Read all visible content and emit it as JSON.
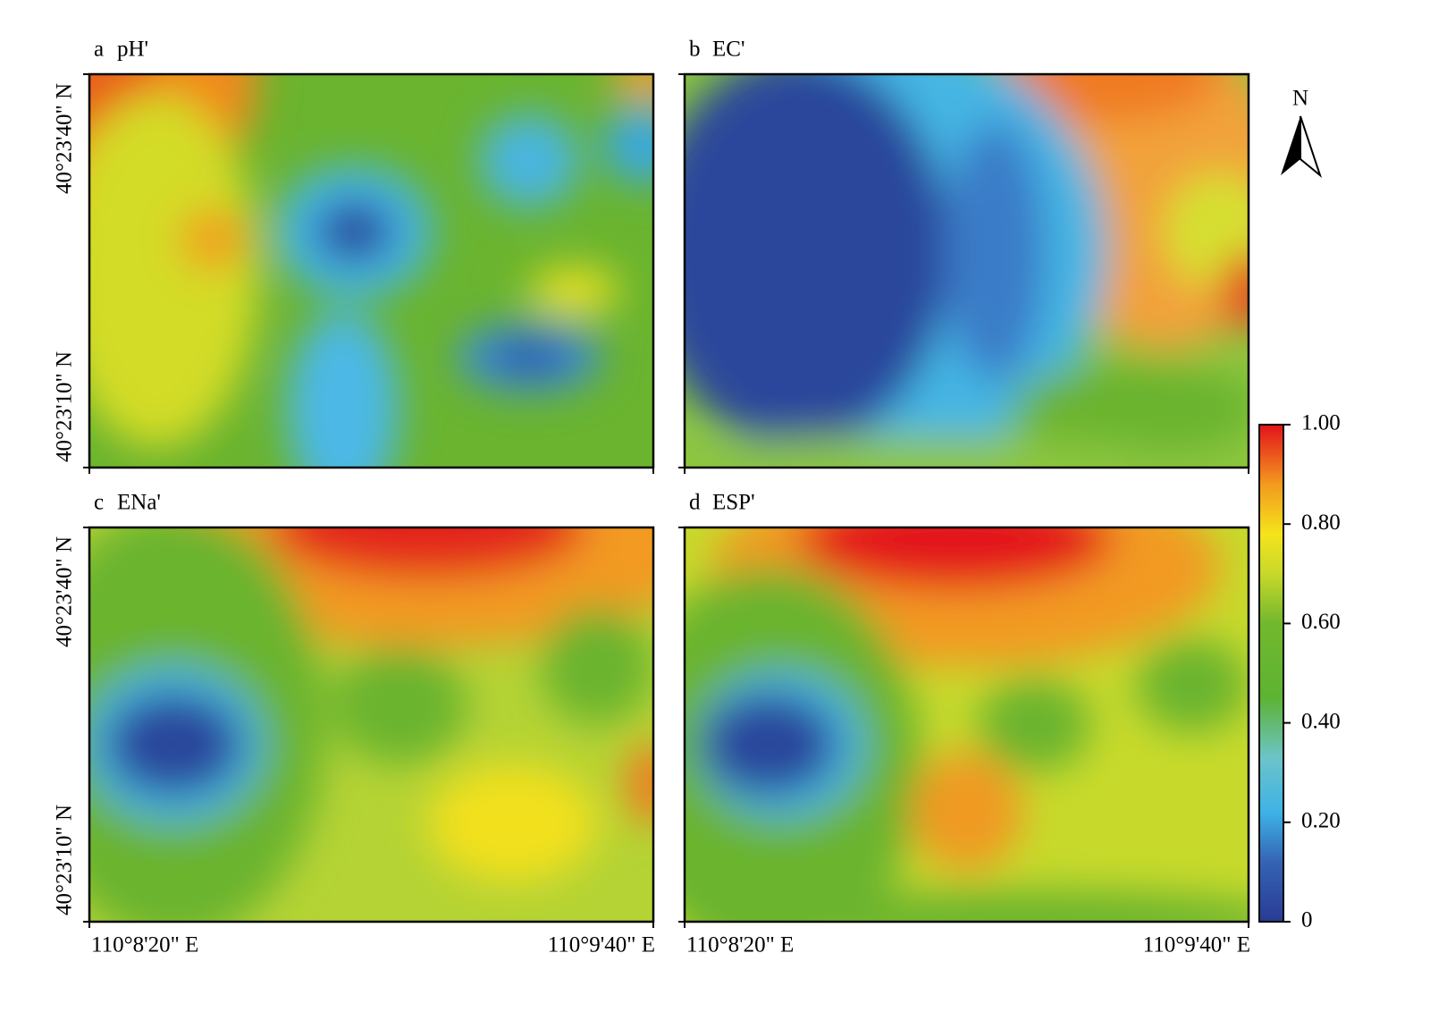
{
  "panels": [
    {
      "letter": "a",
      "title": "pH'"
    },
    {
      "letter": "b",
      "title": "EC'"
    },
    {
      "letter": "c",
      "title": "ENa'"
    },
    {
      "letter": "d",
      "title": "ESP'"
    }
  ],
  "y_tick_labels": [
    "40°23'40\" N",
    "40°23'10\" N"
  ],
  "x_tick_labels": [
    "110°8'20\" E",
    "110°9'40\" E"
  ],
  "colorbar": {
    "range": [
      0,
      1
    ],
    "ticks": [
      {
        "value": 1,
        "label": "1.00"
      },
      {
        "value": 0.8,
        "label": "0.80"
      },
      {
        "value": 0.6,
        "label": "0.60"
      },
      {
        "value": 0.4,
        "label": "0.40"
      },
      {
        "value": 0.2,
        "label": "0.20"
      },
      0
    ]
  },
  "north_label": "N"
}
